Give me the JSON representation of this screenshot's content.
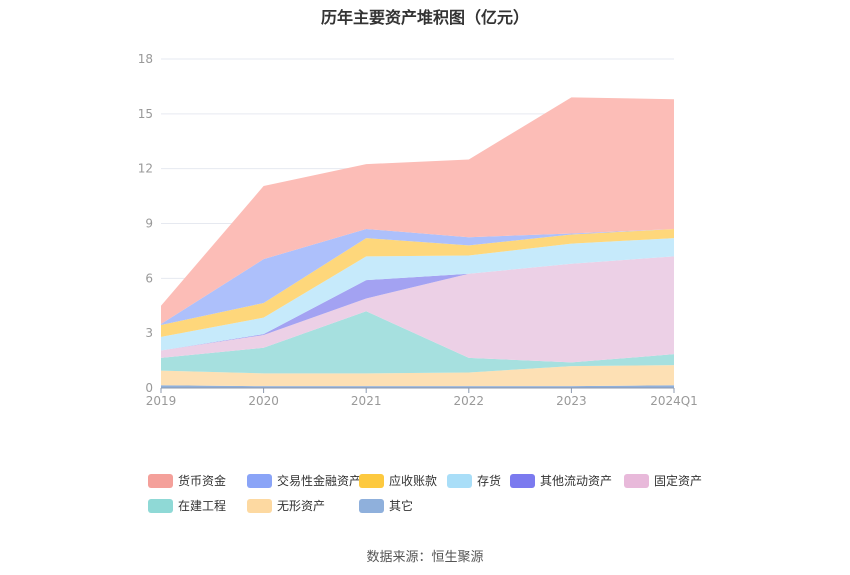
{
  "title": "历年主要资产堆积图（亿元）",
  "source": "数据来源：恒生聚源",
  "chart_data": {
    "type": "area",
    "stacked": true,
    "title": "历年主要资产堆积图（亿元）",
    "categories": [
      "2019",
      "2020",
      "2021",
      "2022",
      "2023",
      "2024Q1"
    ],
    "ylim": [
      0,
      18
    ],
    "yticks": [
      0,
      3,
      6,
      9,
      12,
      15,
      18
    ],
    "grid": true,
    "legend_position": "bottom",
    "series": [
      {
        "name": "其它",
        "color": "#8fb0dc",
        "values": [
          0.15,
          0.1,
          0.1,
          0.1,
          0.1,
          0.15
        ]
      },
      {
        "name": "无形资产",
        "color": "#fde0b4",
        "values": [
          0.8,
          0.7,
          0.7,
          0.75,
          1.1,
          1.1
        ]
      },
      {
        "name": "在建工程",
        "color": "#a6e0df",
        "values": [
          0.7,
          1.4,
          3.4,
          0.8,
          0.2,
          0.6
        ]
      },
      {
        "name": "固定资产",
        "color": "#ecd0e6",
        "values": [
          0.4,
          0.7,
          0.7,
          4.6,
          5.4,
          5.35
        ]
      },
      {
        "name": "其他流动资产",
        "color": "#a3a2f2",
        "values": [
          0.0,
          0.05,
          1.0,
          0.0,
          0.0,
          0.0
        ]
      },
      {
        "name": "存货",
        "color": "#c6eafb",
        "values": [
          0.75,
          0.9,
          1.3,
          1.0,
          1.1,
          1.0
        ]
      },
      {
        "name": "应收账款",
        "color": "#fed77b",
        "values": [
          0.65,
          0.8,
          1.0,
          0.55,
          0.5,
          0.5
        ]
      },
      {
        "name": "交易性金融资产",
        "color": "#adc0fb",
        "values": [
          0.05,
          2.4,
          0.5,
          0.45,
          0.05,
          0.0
        ]
      },
      {
        "name": "货币资金",
        "color": "#fcbdb7",
        "values": [
          1.0,
          4.0,
          3.55,
          4.25,
          7.45,
          7.1
        ]
      }
    ],
    "legend": [
      {
        "name": "货币资金",
        "color": "#f4a09a"
      },
      {
        "name": "交易性金融资产",
        "color": "#8aa4f7"
      },
      {
        "name": "应收账款",
        "color": "#fdc93f"
      },
      {
        "name": "存货",
        "color": "#a9def8"
      },
      {
        "name": "其他流动资产",
        "color": "#7b7aef"
      },
      {
        "name": "固定资产",
        "color": "#e8b9da"
      },
      {
        "name": "在建工程",
        "color": "#8fd9d6"
      },
      {
        "name": "无形资产",
        "color": "#fdd9a1"
      },
      {
        "name": "其它",
        "color": "#8fb0dc"
      }
    ]
  }
}
